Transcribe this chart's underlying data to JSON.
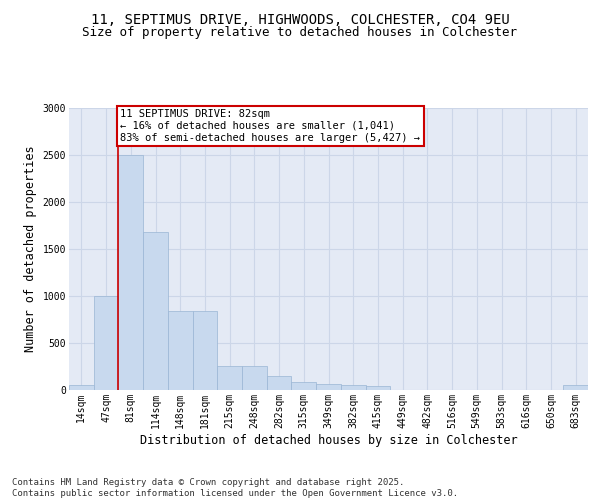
{
  "title_line1": "11, SEPTIMUS DRIVE, HIGHWOODS, COLCHESTER, CO4 9EU",
  "title_line2": "Size of property relative to detached houses in Colchester",
  "xlabel": "Distribution of detached houses by size in Colchester",
  "ylabel": "Number of detached properties",
  "categories": [
    "14sqm",
    "47sqm",
    "81sqm",
    "114sqm",
    "148sqm",
    "181sqm",
    "215sqm",
    "248sqm",
    "282sqm",
    "315sqm",
    "349sqm",
    "382sqm",
    "415sqm",
    "449sqm",
    "482sqm",
    "516sqm",
    "549sqm",
    "583sqm",
    "616sqm",
    "650sqm",
    "683sqm"
  ],
  "values": [
    50,
    1000,
    2500,
    1680,
    840,
    840,
    260,
    260,
    150,
    90,
    65,
    50,
    40,
    0,
    0,
    0,
    0,
    0,
    0,
    0,
    50
  ],
  "bar_color": "#c8d9ee",
  "bar_edge_color": "#9ab5d4",
  "grid_color": "#ccd6e8",
  "bg_color": "#e4eaf5",
  "annotation_text": "11 SEPTIMUS DRIVE: 82sqm\n← 16% of detached houses are smaller (1,041)\n83% of semi-detached houses are larger (5,427) →",
  "annotation_box_color": "#ffffff",
  "annotation_border_color": "#cc0000",
  "vline_color": "#cc0000",
  "vline_x_index": 2,
  "ylim": [
    0,
    3000
  ],
  "yticks": [
    0,
    500,
    1000,
    1500,
    2000,
    2500,
    3000
  ],
  "footnote": "Contains HM Land Registry data © Crown copyright and database right 2025.\nContains public sector information licensed under the Open Government Licence v3.0.",
  "title_fontsize": 10,
  "subtitle_fontsize": 9,
  "axis_label_fontsize": 8.5,
  "tick_fontsize": 7,
  "annot_fontsize": 7.5
}
